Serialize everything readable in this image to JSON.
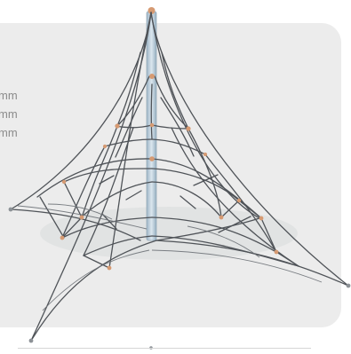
{
  "product": {
    "icon": "climbing-net-pyramid",
    "colors": {
      "panel": "#ececec",
      "rope": "#4f5358",
      "mast": "#a7bfd0",
      "connectors": "#d69a72",
      "dimension_text": "#8b8b8b"
    }
  },
  "dimensions": [
    {
      "unit": "mm"
    },
    {
      "unit": "mm"
    },
    {
      "unit": "mm"
    }
  ]
}
